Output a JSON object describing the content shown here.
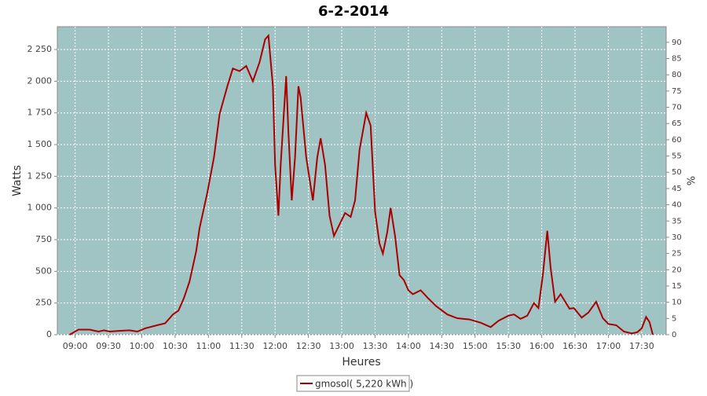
{
  "chart_data": {
    "type": "line",
    "title": "6-2-2014",
    "x_label": "Heures",
    "y_label": "Watts",
    "y2_label": "%",
    "x": [
      "08:55",
      "09:03",
      "09:13",
      "09:21",
      "09:26",
      "09:31",
      "09:38",
      "09:49",
      "09:56",
      "10:03",
      "10:14",
      "10:21",
      "10:28",
      "10:33",
      "10:38",
      "10:43",
      "10:49",
      "10:52",
      "10:59",
      "11:05",
      "11:10",
      "11:17",
      "11:22",
      "11:28",
      "11:34",
      "11:40",
      "11:46",
      "11:51",
      "11:54",
      "11:58",
      "12:00",
      "12:03",
      "12:05",
      "12:10",
      "12:12",
      "12:15",
      "12:18",
      "12:21",
      "12:23",
      "12:28",
      "12:34",
      "12:38",
      "12:41",
      "12:45",
      "12:49",
      "12:53",
      "12:58",
      "13:03",
      "13:08",
      "13:12",
      "13:16",
      "13:22",
      "13:26",
      "13:30",
      "13:34",
      "13:37",
      "13:41",
      "13:44",
      "13:48",
      "13:52",
      "13:56",
      "14:00",
      "14:04",
      "14:11",
      "14:18",
      "14:25",
      "14:35",
      "14:44",
      "14:55",
      "15:05",
      "15:14",
      "15:21",
      "15:30",
      "15:35",
      "15:41",
      "15:47",
      "15:53",
      "15:57",
      "16:01",
      "16:05",
      "16:08",
      "16:12",
      "16:17",
      "16:25",
      "16:29",
      "16:36",
      "16:42",
      "16:49",
      "16:55",
      "17:00",
      "17:07",
      "17:14",
      "17:21",
      "17:26",
      "17:30",
      "17:34",
      "17:37",
      "17:40"
    ],
    "series": [
      {
        "name": "gmosol( 5,220 kWh )",
        "color": "#aa0000",
        "values": [
          0,
          40,
          40,
          25,
          35,
          25,
          30,
          35,
          25,
          50,
          75,
          90,
          160,
          190,
          290,
          420,
          660,
          840,
          1120,
          1400,
          1740,
          1960,
          2100,
          2080,
          2120,
          2000,
          2150,
          2330,
          2360,
          1960,
          1340,
          940,
          1340,
          2040,
          1590,
          1060,
          1400,
          1960,
          1870,
          1400,
          1060,
          1400,
          1550,
          1340,
          940,
          780,
          870,
          960,
          930,
          1060,
          1460,
          1750,
          1650,
          970,
          720,
          640,
          810,
          1000,
          780,
          470,
          430,
          350,
          320,
          350,
          285,
          225,
          160,
          130,
          120,
          95,
          60,
          110,
          150,
          160,
          125,
          150,
          250,
          210,
          470,
          820,
          530,
          260,
          320,
          205,
          210,
          135,
          175,
          260,
          130,
          85,
          75,
          25,
          10,
          20,
          50,
          140,
          100,
          0
        ]
      }
    ],
    "xlim": [
      "08:44",
      "17:52"
    ],
    "xticks": [
      "09:00",
      "09:30",
      "10:00",
      "10:30",
      "11:00",
      "11:30",
      "12:00",
      "12:30",
      "13:00",
      "13:30",
      "14:00",
      "14:30",
      "15:00",
      "15:30",
      "16:00",
      "16:30",
      "17:00",
      "17:30"
    ],
    "ylim": [
      0,
      2430
    ],
    "yticks": [
      0,
      250,
      500,
      750,
      {
        "value": 1000,
        "label": "1 000"
      },
      {
        "value": 1250,
        "label": "1 250"
      },
      {
        "value": 1500,
        "label": "1 500"
      },
      {
        "value": 1750,
        "label": "1 750"
      },
      {
        "value": 2000,
        "label": "2 000"
      },
      {
        "value": 2250,
        "label": "2 250"
      }
    ],
    "y2lim": [
      0,
      94.8
    ],
    "y2ticks": [
      0,
      5,
      10,
      15,
      20,
      25,
      30,
      35,
      40,
      45,
      50,
      55,
      60,
      65,
      70,
      75,
      80,
      85,
      90
    ],
    "grid": true,
    "plot_background": "#a0c4c4"
  }
}
